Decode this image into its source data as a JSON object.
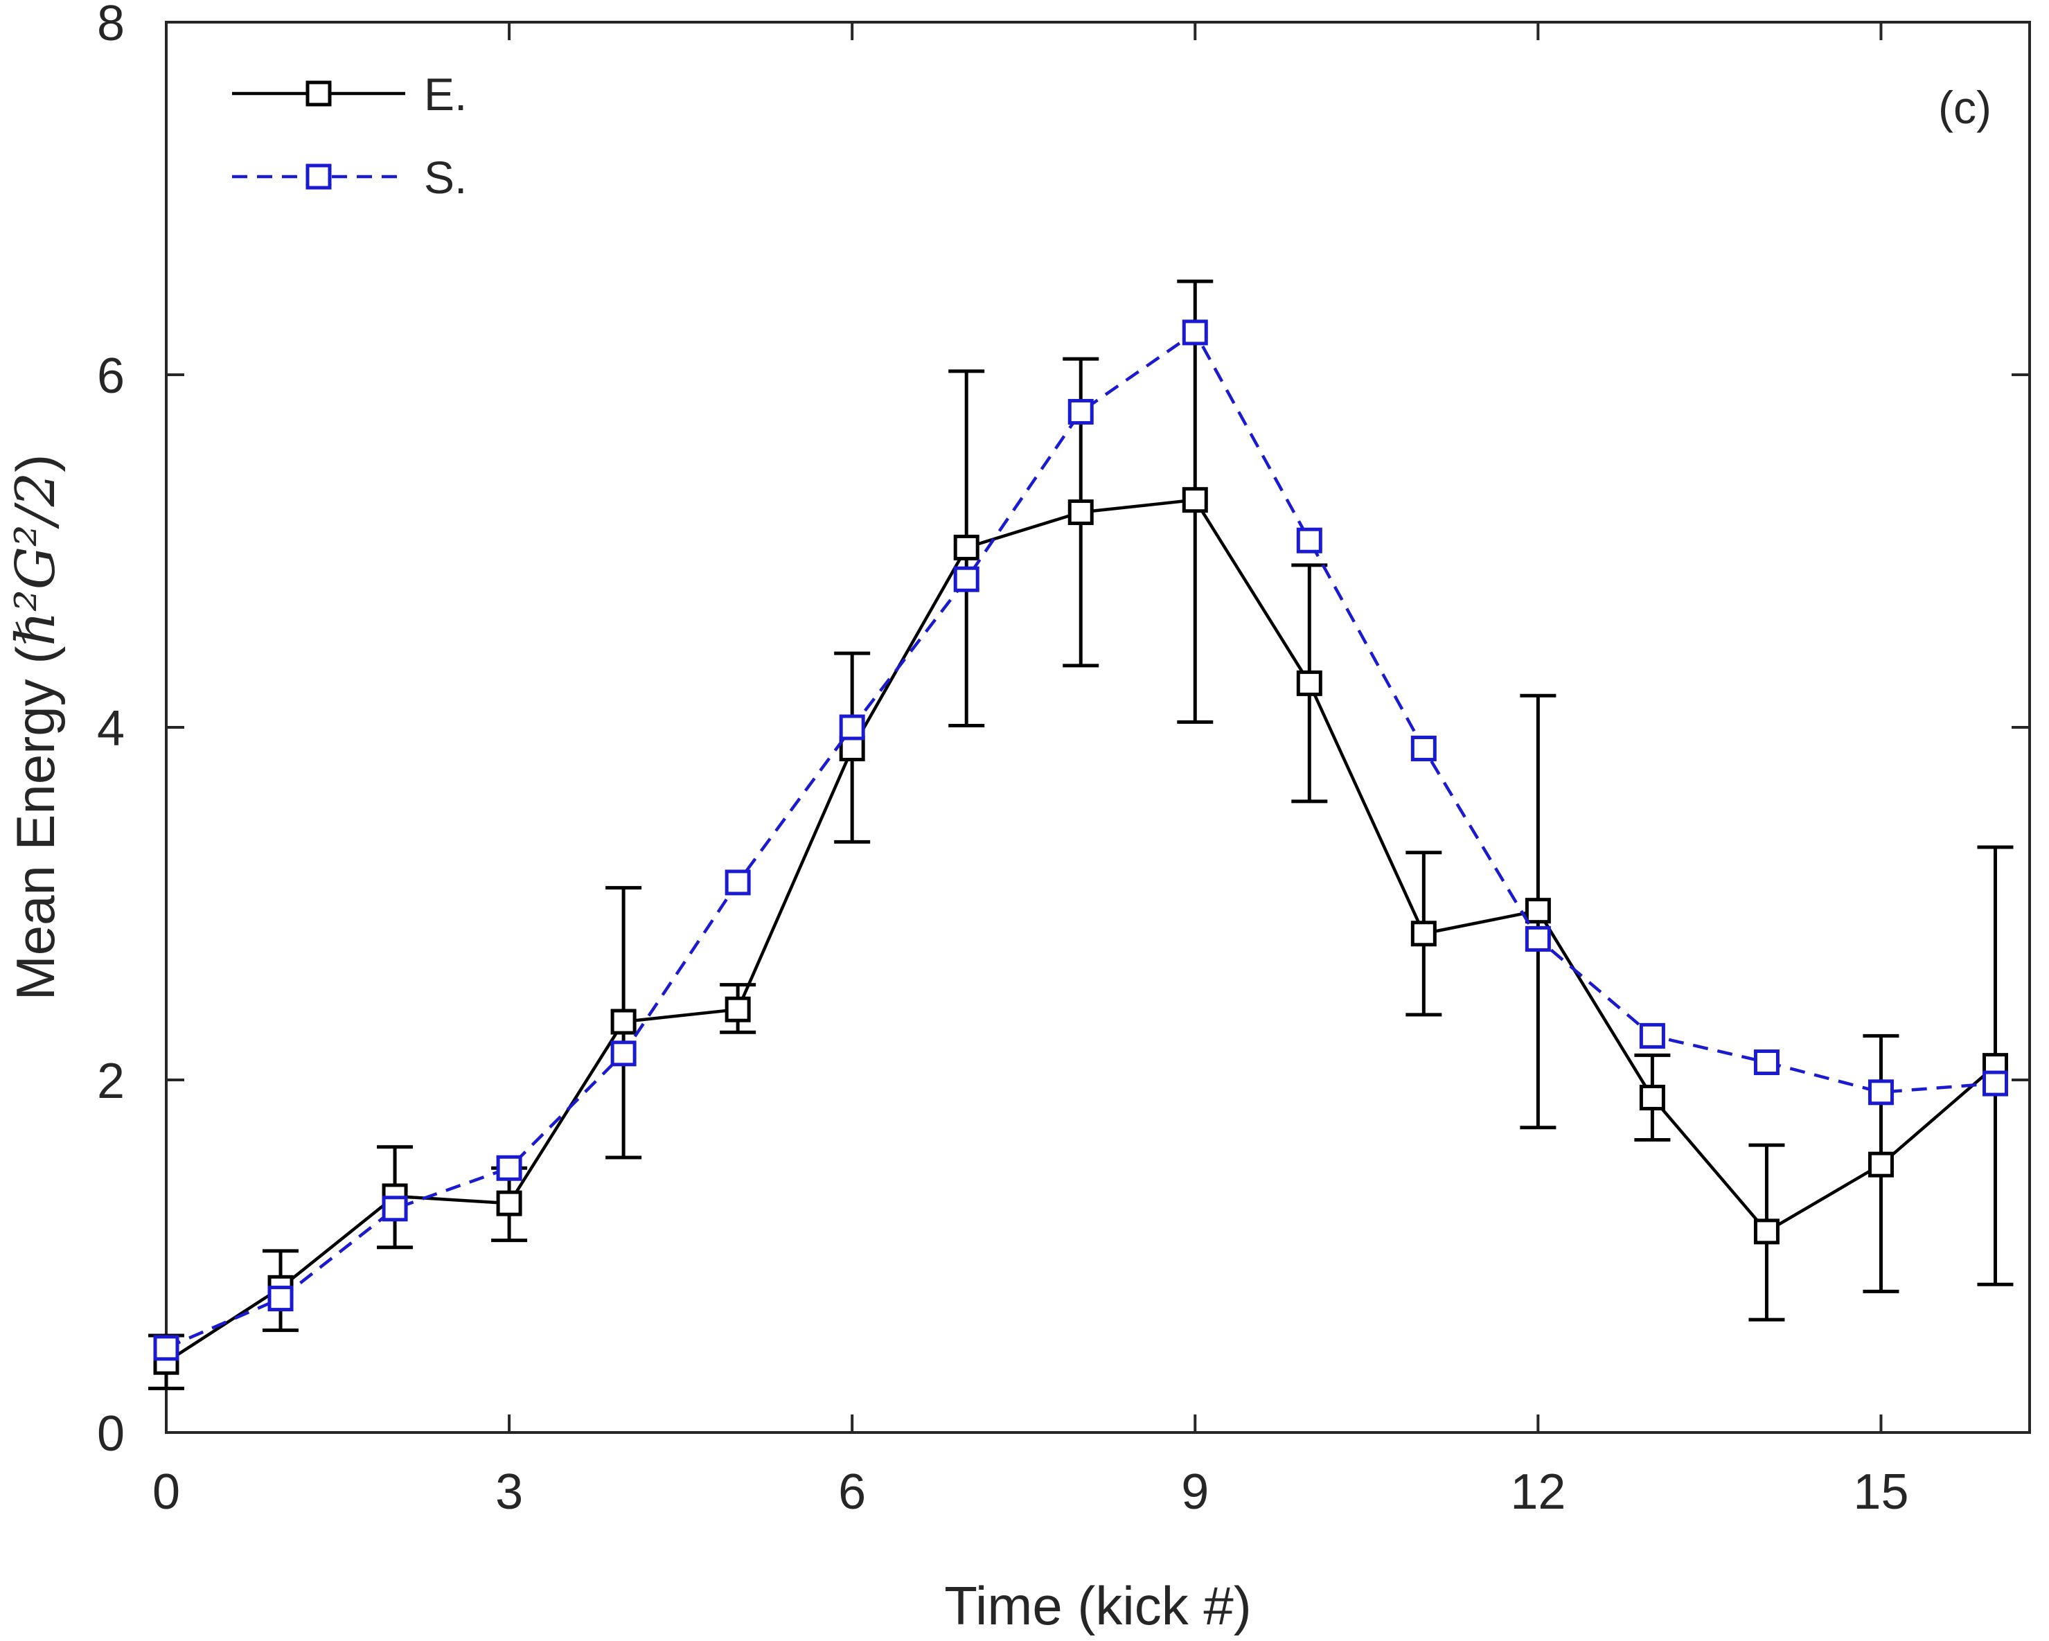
{
  "chart_data": {
    "type": "line",
    "title": "",
    "panel_label": "(c)",
    "xlabel": "Time (kick #)",
    "ylabel_text": "Mean Energy (",
    "ylabel_math": "ℏ²G²/2",
    "ylabel_close": ")",
    "xlim": [
      0,
      16.3
    ],
    "ylim": [
      0,
      8
    ],
    "xticks": [
      0,
      3,
      6,
      9,
      12,
      15
    ],
    "xtick_labels": [
      "0",
      "3",
      "6",
      "9",
      "12",
      "15"
    ],
    "yticks": [
      0,
      2,
      4,
      6,
      8
    ],
    "ytick_labels": [
      "0",
      "2",
      "4",
      "6",
      "8"
    ],
    "legend_position": "top-left",
    "series": [
      {
        "name": "E.",
        "color": "#000000",
        "line_style": "solid",
        "marker": "square",
        "x": [
          0,
          1,
          2,
          3,
          4,
          5,
          6,
          7,
          8,
          9,
          10,
          11,
          12,
          13,
          14,
          15,
          16
        ],
        "y": [
          0.4,
          0.82,
          1.34,
          1.3,
          2.33,
          2.4,
          3.88,
          5.02,
          5.22,
          5.29,
          4.25,
          2.83,
          2.96,
          1.9,
          1.14,
          1.52,
          2.08
        ],
        "err_low": [
          0.25,
          0.58,
          1.05,
          1.09,
          1.56,
          2.27,
          3.35,
          4.01,
          4.35,
          4.03,
          3.58,
          2.37,
          1.73,
          1.66,
          0.64,
          0.8,
          0.84
        ],
        "err_high": [
          0.55,
          1.03,
          1.62,
          1.5,
          3.09,
          2.54,
          4.42,
          6.02,
          6.09,
          6.53,
          4.92,
          3.29,
          4.18,
          2.14,
          1.63,
          2.25,
          3.32
        ]
      },
      {
        "name": "S.",
        "color": "#1a1ad1",
        "line_style": "dashed",
        "marker": "square",
        "x": [
          0,
          1,
          2,
          3,
          4,
          5,
          6,
          7,
          8,
          9,
          10,
          11,
          12,
          13,
          14,
          15,
          16
        ],
        "y": [
          0.48,
          0.76,
          1.27,
          1.5,
          2.15,
          3.12,
          4.0,
          4.84,
          5.79,
          6.24,
          5.06,
          3.88,
          2.8,
          2.25,
          2.1,
          1.93,
          1.98
        ]
      }
    ]
  }
}
